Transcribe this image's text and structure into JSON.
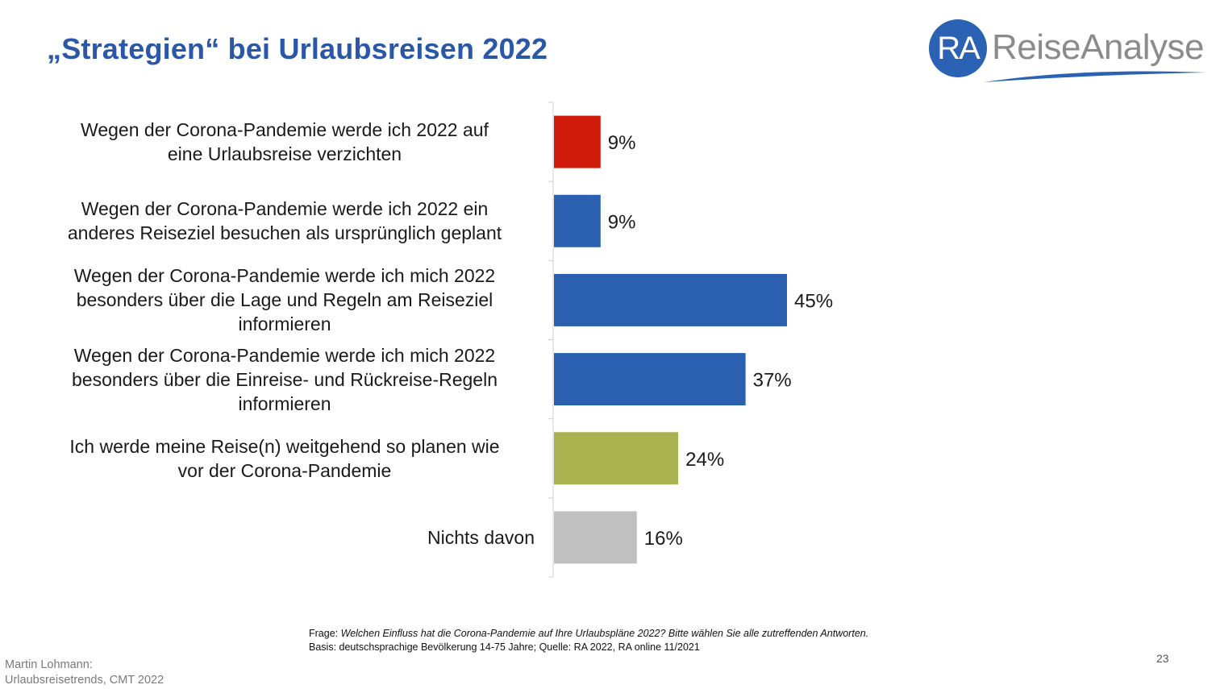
{
  "slide": {
    "title": "„Strategien“ bei Urlaubsreisen 2022",
    "logo_initials": "RA",
    "logo_text": "ReiseAnalyse",
    "question_label": "Frage:",
    "question_text": "Welchen Einfluss hat die Corona-Pandemie auf Ihre Urlaubspläne 2022? Bitte wählen Sie alle zutreffenden Antworten.",
    "basis_text": "Basis: deutschsprachige Bevölkerung 14-75 Jahre; Quelle: RA 2022, RA online 11/2021",
    "author_line1": "Martin Lohmann:",
    "author_line2": "Urlaubsreisetrends, CMT 2022",
    "page_number": "23",
    "colors": {
      "title": "#2b57a8",
      "logo": "#2b62b4"
    }
  },
  "chart_data": {
    "type": "bar",
    "orientation": "horizontal",
    "title": "„Strategien“ bei Urlaubsreisen 2022",
    "categories": [
      [
        "Wegen der Corona-Pandemie werde ich 2022 auf",
        "eine Urlaubsreise verzichten"
      ],
      [
        "Wegen der Corona-Pandemie werde ich 2022 ein",
        "anderes Reiseziel besuchen als ursprünglich geplant"
      ],
      [
        "Wegen der Corona-Pandemie werde ich mich 2022",
        "besonders über die Lage und Regeln am Reiseziel",
        "informieren"
      ],
      [
        "Wegen der Corona-Pandemie werde ich mich 2022",
        "besonders über die Einreise- und Rückreise-Regeln",
        "informieren"
      ],
      [
        "Ich werde meine Reise(n) weitgehend so planen wie",
        "vor der Corona-Pandemie"
      ],
      [
        "Nichts davon"
      ]
    ],
    "values": [
      9,
      9,
      45,
      37,
      24,
      16
    ],
    "value_labels": [
      "9%",
      "9%",
      "45%",
      "37%",
      "24%",
      "16%"
    ],
    "bar_colors": [
      "#d01a0a",
      "#2b5fb0",
      "#2b5fb0",
      "#2b5fb0",
      "#aab24f",
      "#c0c0c0"
    ],
    "xlim": [
      0,
      100
    ],
    "unit": "%",
    "grid": false,
    "legend": "none"
  }
}
